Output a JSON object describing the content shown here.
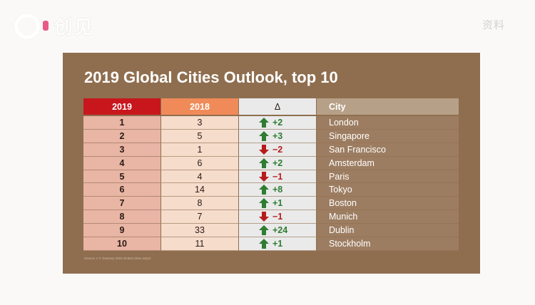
{
  "brand": {
    "logo_text": "创见",
    "corner_label": "资料"
  },
  "slide": {
    "title": "2019 Global Cities Outlook, top 10",
    "source": "Source: A.T. Kearney 2019 Global Cities report",
    "colors": {
      "up": "#2e7d32",
      "down": "#b71c1c"
    },
    "table": {
      "headers": {
        "col_2019": "2019",
        "col_2018": "2018",
        "col_delta": "Δ",
        "col_city": "City"
      },
      "rows": [
        {
          "rank_2019": "1",
          "rank_2018": "3",
          "direction": "up",
          "delta": "+2",
          "city": "London"
        },
        {
          "rank_2019": "2",
          "rank_2018": "5",
          "direction": "up",
          "delta": "+3",
          "city": "Singapore"
        },
        {
          "rank_2019": "3",
          "rank_2018": "1",
          "direction": "down",
          "delta": "−2",
          "city": "San Francisco"
        },
        {
          "rank_2019": "4",
          "rank_2018": "6",
          "direction": "up",
          "delta": "+2",
          "city": "Amsterdam"
        },
        {
          "rank_2019": "5",
          "rank_2018": "4",
          "direction": "down",
          "delta": "−1",
          "city": "Paris"
        },
        {
          "rank_2019": "6",
          "rank_2018": "14",
          "direction": "up",
          "delta": "+8",
          "city": "Tokyo"
        },
        {
          "rank_2019": "7",
          "rank_2018": "8",
          "direction": "up",
          "delta": "+1",
          "city": "Boston"
        },
        {
          "rank_2019": "8",
          "rank_2018": "7",
          "direction": "down",
          "delta": "−1",
          "city": "Munich"
        },
        {
          "rank_2019": "9",
          "rank_2018": "33",
          "direction": "up",
          "delta": "+24",
          "city": "Dublin"
        },
        {
          "rank_2019": "10",
          "rank_2018": "11",
          "direction": "up",
          "delta": "+1",
          "city": "Stockholm"
        }
      ]
    }
  }
}
